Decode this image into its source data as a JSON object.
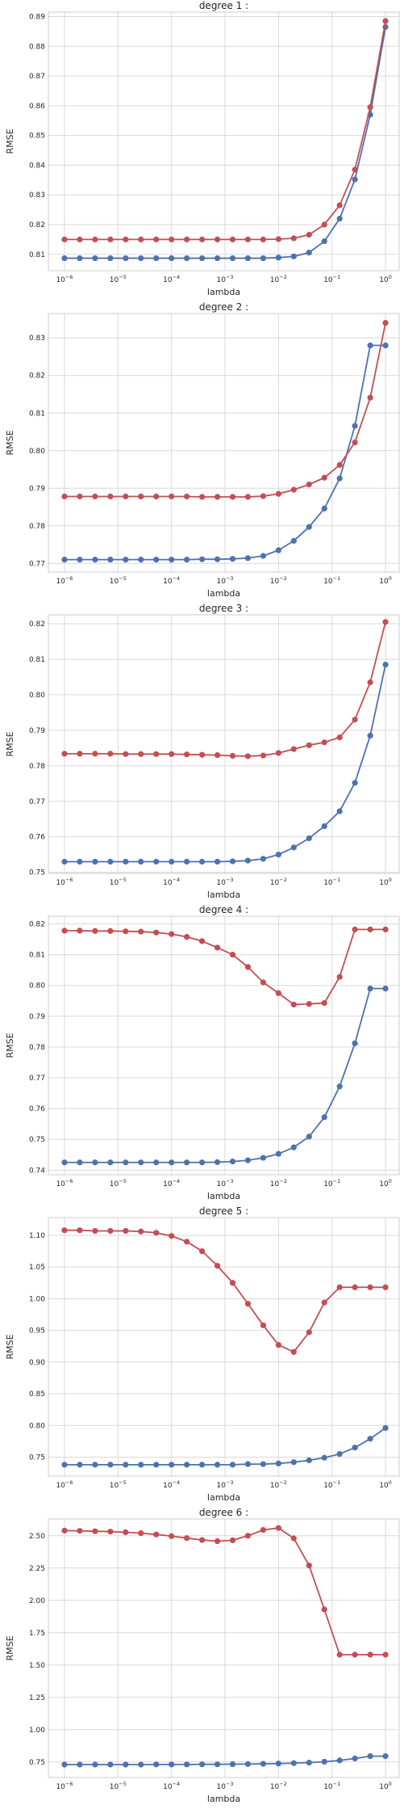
{
  "chart_data": [
    {
      "type": "line",
      "title": "degree 1 :",
      "xlabel": "lambda",
      "ylabel": "RMSE",
      "xscale": "log",
      "grid": true,
      "xlim": [
        5e-07,
        1.8
      ],
      "ylim": [
        0.8045,
        0.8915
      ],
      "xticks": [
        {
          "base": "10",
          "exp": "−6"
        },
        {
          "base": "10",
          "exp": "−5"
        },
        {
          "base": "10",
          "exp": "−4"
        },
        {
          "base": "10",
          "exp": "−3"
        },
        {
          "base": "10",
          "exp": "−2"
        },
        {
          "base": "10",
          "exp": "−1"
        },
        {
          "base": "10",
          "exp": "0"
        }
      ],
      "yticks": [
        0.81,
        0.82,
        0.83,
        0.84,
        0.85,
        0.86,
        0.87,
        0.88,
        0.89
      ],
      "ytick_labels": [
        "0.81",
        "0.82",
        "0.83",
        "0.84",
        "0.85",
        "0.86",
        "0.87",
        "0.88",
        "0.89"
      ],
      "x": [
        1e-06,
        1.93e-06,
        3.73e-06,
        7.2e-06,
        1.39e-05,
        2.68e-05,
        5.18e-05,
        0.0001,
        0.000193,
        0.000373,
        0.00072,
        0.00139,
        0.00268,
        0.00518,
        0.01,
        0.0193,
        0.0373,
        0.072,
        0.139,
        0.268,
        0.518,
        1.0
      ],
      "series": [
        {
          "color": "#4c72b0",
          "values": [
            0.8087,
            0.8087,
            0.8087,
            0.8087,
            0.8087,
            0.8087,
            0.8087,
            0.8087,
            0.8087,
            0.8087,
            0.8087,
            0.8087,
            0.8087,
            0.8087,
            0.8089,
            0.8093,
            0.8106,
            0.8144,
            0.822,
            0.8352,
            0.857,
            0.8865
          ]
        },
        {
          "color": "#c44e52",
          "values": [
            0.815,
            0.815,
            0.815,
            0.815,
            0.815,
            0.815,
            0.815,
            0.815,
            0.815,
            0.815,
            0.815,
            0.815,
            0.815,
            0.815,
            0.8151,
            0.8154,
            0.8166,
            0.82,
            0.8265,
            0.8385,
            0.8595,
            0.8885
          ]
        }
      ]
    },
    {
      "type": "line",
      "title": "degree 2 :",
      "xlabel": "lambda",
      "ylabel": "RMSE",
      "xscale": "log",
      "grid": true,
      "xlim": [
        5e-07,
        1.8
      ],
      "ylim": [
        0.7677,
        0.8365
      ],
      "xticks": [
        {
          "base": "10",
          "exp": "−6"
        },
        {
          "base": "10",
          "exp": "−5"
        },
        {
          "base": "10",
          "exp": "−4"
        },
        {
          "base": "10",
          "exp": "−3"
        },
        {
          "base": "10",
          "exp": "−2"
        },
        {
          "base": "10",
          "exp": "−1"
        },
        {
          "base": "10",
          "exp": "0"
        }
      ],
      "yticks": [
        0.77,
        0.78,
        0.79,
        0.8,
        0.81,
        0.82,
        0.83
      ],
      "ytick_labels": [
        "0.77",
        "0.78",
        "0.79",
        "0.80",
        "0.81",
        "0.82",
        "0.83"
      ],
      "x": [
        1e-06,
        1.93e-06,
        3.73e-06,
        7.2e-06,
        1.39e-05,
        2.68e-05,
        5.18e-05,
        0.0001,
        0.000193,
        0.000373,
        0.00072,
        0.00139,
        0.00268,
        0.00518,
        0.01,
        0.0193,
        0.0373,
        0.072,
        0.139,
        0.268,
        0.518,
        1.0
      ],
      "series": [
        {
          "color": "#4c72b0",
          "values": [
            0.771,
            0.771,
            0.771,
            0.771,
            0.771,
            0.771,
            0.771,
            0.771,
            0.771,
            0.7711,
            0.7711,
            0.7712,
            0.7714,
            0.772,
            0.7735,
            0.776,
            0.7797,
            0.7846,
            0.7926,
            0.8066,
            0.828,
            0.828
          ]
        },
        {
          "color": "#c44e52",
          "values": [
            0.7878,
            0.7878,
            0.7878,
            0.7878,
            0.7878,
            0.7878,
            0.7878,
            0.7878,
            0.7878,
            0.7877,
            0.7877,
            0.7877,
            0.7877,
            0.7879,
            0.7885,
            0.7896,
            0.791,
            0.7928,
            0.7962,
            0.8022,
            0.8141,
            0.834
          ]
        }
      ]
    },
    {
      "type": "line",
      "title": "degree 3 :",
      "xlabel": "lambda",
      "ylabel": "RMSE",
      "xscale": "log",
      "grid": true,
      "xlim": [
        5e-07,
        1.8
      ],
      "ylim": [
        0.7497,
        0.8225
      ],
      "xticks": [
        {
          "base": "10",
          "exp": "−6"
        },
        {
          "base": "10",
          "exp": "−5"
        },
        {
          "base": "10",
          "exp": "−4"
        },
        {
          "base": "10",
          "exp": "−3"
        },
        {
          "base": "10",
          "exp": "−2"
        },
        {
          "base": "10",
          "exp": "−1"
        },
        {
          "base": "10",
          "exp": "0"
        }
      ],
      "yticks": [
        0.75,
        0.76,
        0.77,
        0.78,
        0.79,
        0.8,
        0.81,
        0.82
      ],
      "ytick_labels": [
        "0.75",
        "0.76",
        "0.77",
        "0.78",
        "0.79",
        "0.80",
        "0.81",
        "0.82"
      ],
      "x": [
        1e-06,
        1.93e-06,
        3.73e-06,
        7.2e-06,
        1.39e-05,
        2.68e-05,
        5.18e-05,
        0.0001,
        0.000193,
        0.000373,
        0.00072,
        0.00139,
        0.00268,
        0.00518,
        0.01,
        0.0193,
        0.0373,
        0.072,
        0.139,
        0.268,
        0.518,
        1.0
      ],
      "series": [
        {
          "color": "#4c72b0",
          "values": [
            0.753,
            0.753,
            0.753,
            0.753,
            0.753,
            0.753,
            0.753,
            0.753,
            0.753,
            0.753,
            0.753,
            0.7531,
            0.7533,
            0.7538,
            0.755,
            0.757,
            0.7596,
            0.763,
            0.7672,
            0.7752,
            0.7885,
            0.8085
          ]
        },
        {
          "color": "#c44e52",
          "values": [
            0.7834,
            0.7834,
            0.7834,
            0.7834,
            0.7833,
            0.7833,
            0.7833,
            0.7833,
            0.7832,
            0.7831,
            0.783,
            0.7828,
            0.7827,
            0.7829,
            0.7836,
            0.7847,
            0.7858,
            0.7866,
            0.788,
            0.793,
            0.8035,
            0.8205
          ]
        }
      ]
    },
    {
      "type": "line",
      "title": "degree 4 :",
      "xlabel": "lambda",
      "ylabel": "RMSE",
      "xscale": "log",
      "grid": true,
      "xlim": [
        5e-07,
        1.8
      ],
      "ylim": [
        0.7385,
        0.8225
      ],
      "xticks": [
        {
          "base": "10",
          "exp": "−6"
        },
        {
          "base": "10",
          "exp": "−5"
        },
        {
          "base": "10",
          "exp": "−4"
        },
        {
          "base": "10",
          "exp": "−3"
        },
        {
          "base": "10",
          "exp": "−2"
        },
        {
          "base": "10",
          "exp": "−1"
        },
        {
          "base": "10",
          "exp": "0"
        }
      ],
      "yticks": [
        0.74,
        0.75,
        0.76,
        0.77,
        0.78,
        0.79,
        0.8,
        0.81,
        0.82
      ],
      "ytick_labels": [
        "0.74",
        "0.75",
        "0.76",
        "0.77",
        "0.78",
        "0.79",
        "0.80",
        "0.81",
        "0.82"
      ],
      "x": [
        1e-06,
        1.93e-06,
        3.73e-06,
        7.2e-06,
        1.39e-05,
        2.68e-05,
        5.18e-05,
        0.0001,
        0.000193,
        0.000373,
        0.00072,
        0.00139,
        0.00268,
        0.00518,
        0.01,
        0.0193,
        0.0373,
        0.072,
        0.139,
        0.268,
        0.518,
        1.0
      ],
      "series": [
        {
          "color": "#4c72b0",
          "values": [
            0.7425,
            0.7425,
            0.7425,
            0.7425,
            0.7425,
            0.7425,
            0.7425,
            0.7425,
            0.7425,
            0.7425,
            0.7426,
            0.7428,
            0.7432,
            0.744,
            0.7453,
            0.7474,
            0.7509,
            0.7572,
            0.7672,
            0.7812,
            0.799,
            0.799
          ]
        },
        {
          "color": "#c44e52",
          "values": [
            0.8178,
            0.8178,
            0.8177,
            0.8177,
            0.8176,
            0.8175,
            0.8172,
            0.8167,
            0.8158,
            0.8144,
            0.8123,
            0.81,
            0.806,
            0.801,
            0.7975,
            0.7938,
            0.794,
            0.7943,
            0.8028,
            0.8182,
            0.8182,
            0.8182
          ]
        }
      ]
    },
    {
      "type": "line",
      "title": "degree 5 :",
      "xlabel": "lambda",
      "ylabel": "RMSE",
      "xscale": "log",
      "grid": true,
      "xlim": [
        5e-07,
        1.8
      ],
      "ylim": [
        0.72,
        1.128
      ],
      "xticks": [
        {
          "base": "10",
          "exp": "−6"
        },
        {
          "base": "10",
          "exp": "−5"
        },
        {
          "base": "10",
          "exp": "−4"
        },
        {
          "base": "10",
          "exp": "−3"
        },
        {
          "base": "10",
          "exp": "−2"
        },
        {
          "base": "10",
          "exp": "−1"
        },
        {
          "base": "10",
          "exp": "0"
        }
      ],
      "yticks": [
        0.75,
        0.8,
        0.85,
        0.9,
        0.95,
        1.0,
        1.05,
        1.1
      ],
      "ytick_labels": [
        "0.75",
        "0.80",
        "0.85",
        "0.90",
        "0.95",
        "1.00",
        "1.05",
        "1.10"
      ],
      "x": [
        1e-06,
        1.93e-06,
        3.73e-06,
        7.2e-06,
        1.39e-05,
        2.68e-05,
        5.18e-05,
        0.0001,
        0.000193,
        0.000373,
        0.00072,
        0.00139,
        0.00268,
        0.00518,
        0.01,
        0.0193,
        0.0373,
        0.072,
        0.139,
        0.268,
        0.518,
        1.0
      ],
      "series": [
        {
          "color": "#4c72b0",
          "values": [
            0.738,
            0.738,
            0.738,
            0.738,
            0.738,
            0.738,
            0.738,
            0.738,
            0.738,
            0.738,
            0.738,
            0.738,
            0.739,
            0.739,
            0.74,
            0.742,
            0.745,
            0.749,
            0.755,
            0.765,
            0.779,
            0.796
          ]
        },
        {
          "color": "#c44e52",
          "values": [
            1.108,
            1.108,
            1.107,
            1.107,
            1.107,
            1.106,
            1.104,
            1.099,
            1.09,
            1.075,
            1.052,
            1.025,
            0.992,
            0.958,
            0.927,
            0.916,
            0.947,
            0.994,
            1.018,
            1.018,
            1.018,
            1.018
          ]
        }
      ]
    },
    {
      "type": "line",
      "title": "degree 6 :",
      "xlabel": "lambda",
      "ylabel": "RMSE",
      "xscale": "log",
      "grid": true,
      "xlim": [
        5e-07,
        1.8
      ],
      "ylim": [
        0.63,
        2.63
      ],
      "xticks": [
        {
          "base": "10",
          "exp": "−6"
        },
        {
          "base": "10",
          "exp": "−5"
        },
        {
          "base": "10",
          "exp": "−4"
        },
        {
          "base": "10",
          "exp": "−3"
        },
        {
          "base": "10",
          "exp": "−2"
        },
        {
          "base": "10",
          "exp": "−1"
        },
        {
          "base": "10",
          "exp": "0"
        }
      ],
      "yticks": [
        0.75,
        1.0,
        1.25,
        1.5,
        1.75,
        2.0,
        2.25,
        2.5
      ],
      "ytick_labels": [
        "0.75",
        "1.00",
        "1.25",
        "1.50",
        "1.75",
        "2.00",
        "2.25",
        "2.50"
      ],
      "x": [
        1e-06,
        1.93e-06,
        3.73e-06,
        7.2e-06,
        1.39e-05,
        2.68e-05,
        5.18e-05,
        0.0001,
        0.000193,
        0.000373,
        0.00072,
        0.00139,
        0.00268,
        0.00518,
        0.01,
        0.0193,
        0.0373,
        0.072,
        0.139,
        0.268,
        0.518,
        1.0
      ],
      "series": [
        {
          "color": "#4c72b0",
          "values": [
            0.73,
            0.73,
            0.73,
            0.73,
            0.73,
            0.73,
            0.731,
            0.731,
            0.731,
            0.732,
            0.732,
            0.733,
            0.734,
            0.736,
            0.738,
            0.741,
            0.745,
            0.752,
            0.762,
            0.777,
            0.795,
            0.795
          ]
        },
        {
          "color": "#c44e52",
          "values": [
            2.54,
            2.538,
            2.535,
            2.532,
            2.527,
            2.52,
            2.51,
            2.497,
            2.482,
            2.467,
            2.458,
            2.465,
            2.5,
            2.545,
            2.56,
            2.48,
            2.27,
            1.93,
            1.58,
            1.58,
            1.58,
            1.58
          ]
        }
      ]
    }
  ]
}
